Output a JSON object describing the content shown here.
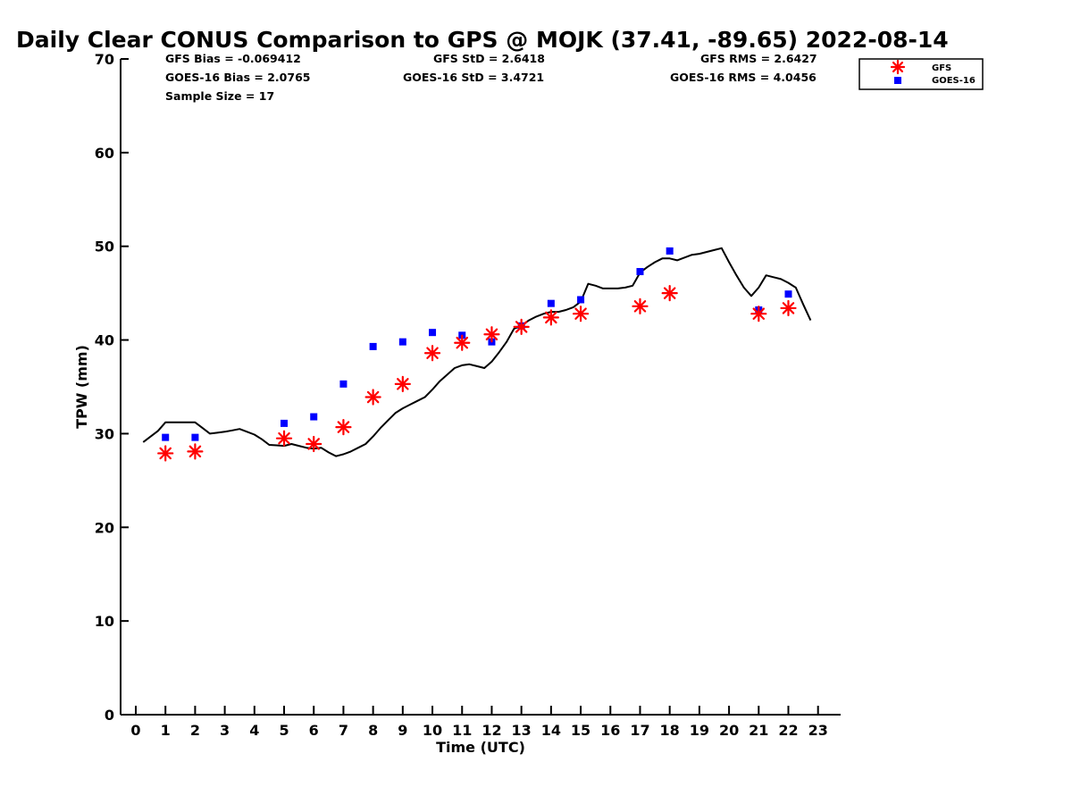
{
  "chart_data": {
    "type": "scatter",
    "title": "Daily Clear CONUS Comparison to GPS @ MOJK (37.41, -89.65) 2022-08-14",
    "xlabel": "Time (UTC)",
    "ylabel": "TPW (mm)",
    "xlim": [
      -0.5,
      23.7
    ],
    "ylim": [
      0,
      70
    ],
    "x_ticks": [
      0,
      1,
      2,
      3,
      4,
      5,
      6,
      7,
      8,
      9,
      10,
      11,
      12,
      13,
      14,
      15,
      16,
      17,
      18,
      19,
      20,
      21,
      22,
      23
    ],
    "y_ticks": [
      0,
      10,
      20,
      30,
      40,
      50,
      60,
      70
    ],
    "grid": false,
    "legend_position": "top-right",
    "stats": {
      "gfs_bias": "GFS Bias = -0.069412",
      "goes_bias": "GOES-16 Bias = 2.0765",
      "sample_size": "Sample Size = 17",
      "gfs_std": "GFS StD = 2.6418",
      "goes_std": "GOES-16 StD = 3.4721",
      "gfs_rms": "GFS RMS = 2.6427",
      "goes_rms": "GOES-16 RMS = 4.0456"
    },
    "series": [
      {
        "name": "",
        "kind": "line",
        "color": "#000000",
        "x": [
          0.25,
          0.75,
          1.0,
          1.5,
          1.75,
          2.0,
          2.25,
          2.5,
          2.75,
          3.0,
          3.25,
          3.5,
          3.75,
          4.0,
          4.25,
          4.5,
          4.75,
          5.0,
          5.25,
          5.5,
          5.75,
          6.0,
          6.25,
          6.5,
          6.75,
          7.0,
          7.25,
          7.5,
          7.75,
          8.0,
          8.25,
          8.5,
          8.75,
          9.0,
          9.25,
          9.5,
          9.75,
          10.0,
          10.25,
          10.5,
          10.75,
          11.0,
          11.25,
          11.5,
          11.75,
          12.0,
          12.25,
          12.5,
          12.75,
          13.0,
          13.25,
          13.5,
          13.75,
          14.0,
          14.25,
          14.5,
          14.75,
          15.0,
          15.25,
          15.5,
          15.75,
          16.0,
          16.25,
          16.5,
          16.75,
          17.0,
          17.25,
          17.5,
          17.75,
          18.0,
          18.25,
          18.5,
          18.75,
          19.0,
          19.25,
          19.5,
          19.75,
          20.0,
          20.25,
          20.5,
          20.75,
          21.0,
          21.25,
          21.5,
          21.75,
          22.0,
          22.25,
          22.5,
          22.75
        ],
        "y": [
          29.1,
          30.3,
          31.2,
          31.2,
          31.2,
          31.2,
          30.6,
          30.0,
          30.1,
          30.2,
          30.35,
          30.5,
          30.2,
          29.9,
          29.4,
          28.8,
          28.75,
          28.7,
          28.9,
          28.7,
          28.5,
          28.4,
          28.5,
          28.0,
          27.6,
          27.8,
          28.1,
          28.5,
          28.9,
          29.7,
          30.6,
          31.4,
          32.2,
          32.7,
          33.1,
          33.5,
          33.9,
          34.7,
          35.6,
          36.3,
          37.0,
          37.3,
          37.4,
          37.2,
          37.0,
          37.7,
          38.7,
          39.8,
          41.2,
          41.5,
          42.1,
          42.5,
          42.8,
          43.0,
          43.0,
          43.2,
          43.5,
          44.1,
          46.0,
          45.8,
          45.5,
          45.5,
          45.5,
          45.6,
          45.8,
          47.2,
          47.8,
          48.3,
          48.7,
          48.7,
          48.5,
          48.8,
          49.1,
          49.2,
          49.4,
          49.6,
          49.8,
          48.3,
          46.9,
          45.6,
          44.7,
          45.6,
          46.9,
          46.7,
          46.5,
          46.1,
          45.6,
          43.8,
          42.1
        ]
      },
      {
        "name": "GFS",
        "kind": "scatter",
        "marker": "asterisk",
        "color": "#ff0000",
        "x": [
          1,
          2,
          5,
          6,
          7,
          8,
          9,
          10,
          11,
          12,
          13,
          14,
          15,
          17,
          18,
          21,
          22
        ],
        "y": [
          27.9,
          28.1,
          29.5,
          28.9,
          30.7,
          33.9,
          35.3,
          38.6,
          39.7,
          40.6,
          41.4,
          42.4,
          42.8,
          43.6,
          45.0,
          42.8,
          43.4
        ]
      },
      {
        "name": "GOES-16",
        "kind": "scatter",
        "marker": "square",
        "color": "#0000ff",
        "x": [
          1,
          2,
          5,
          6,
          7,
          8,
          9,
          10,
          11,
          12,
          13,
          14,
          15,
          17,
          18,
          21,
          22
        ],
        "y": [
          29.6,
          29.6,
          31.1,
          31.8,
          35.3,
          39.3,
          39.8,
          40.8,
          40.5,
          39.8,
          41.5,
          43.9,
          44.3,
          47.3,
          49.5,
          43.2,
          44.9
        ]
      }
    ]
  }
}
